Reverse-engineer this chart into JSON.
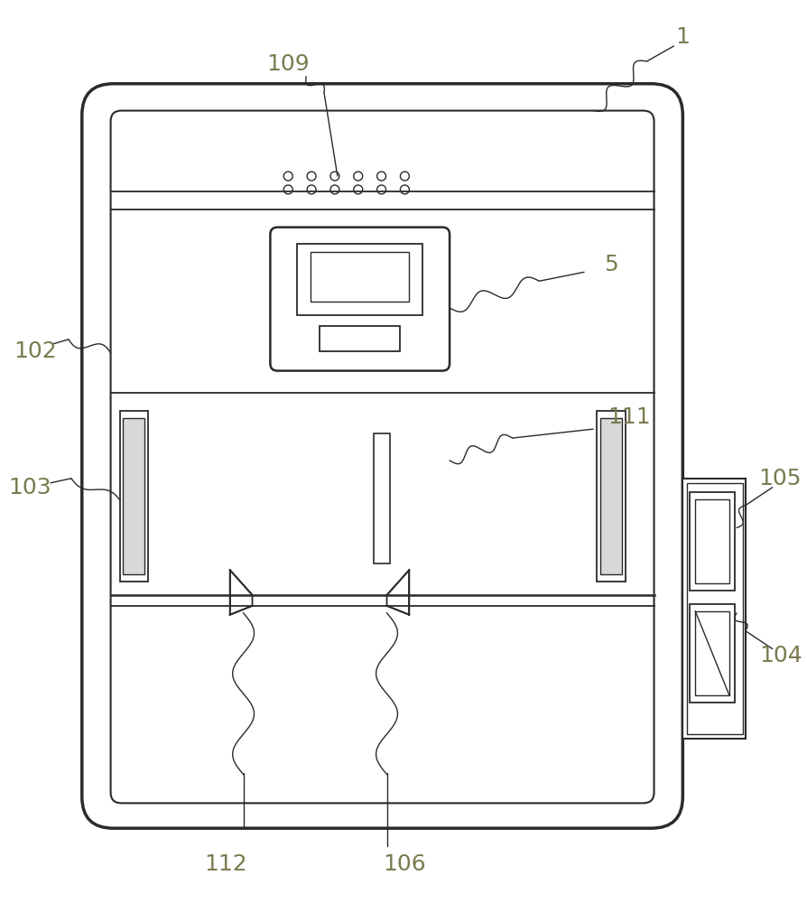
{
  "bg_color": "#ffffff",
  "line_color": "#2a2a2a",
  "label_color": "#7a7a50",
  "fig_width": 8.94,
  "fig_height": 10.0
}
